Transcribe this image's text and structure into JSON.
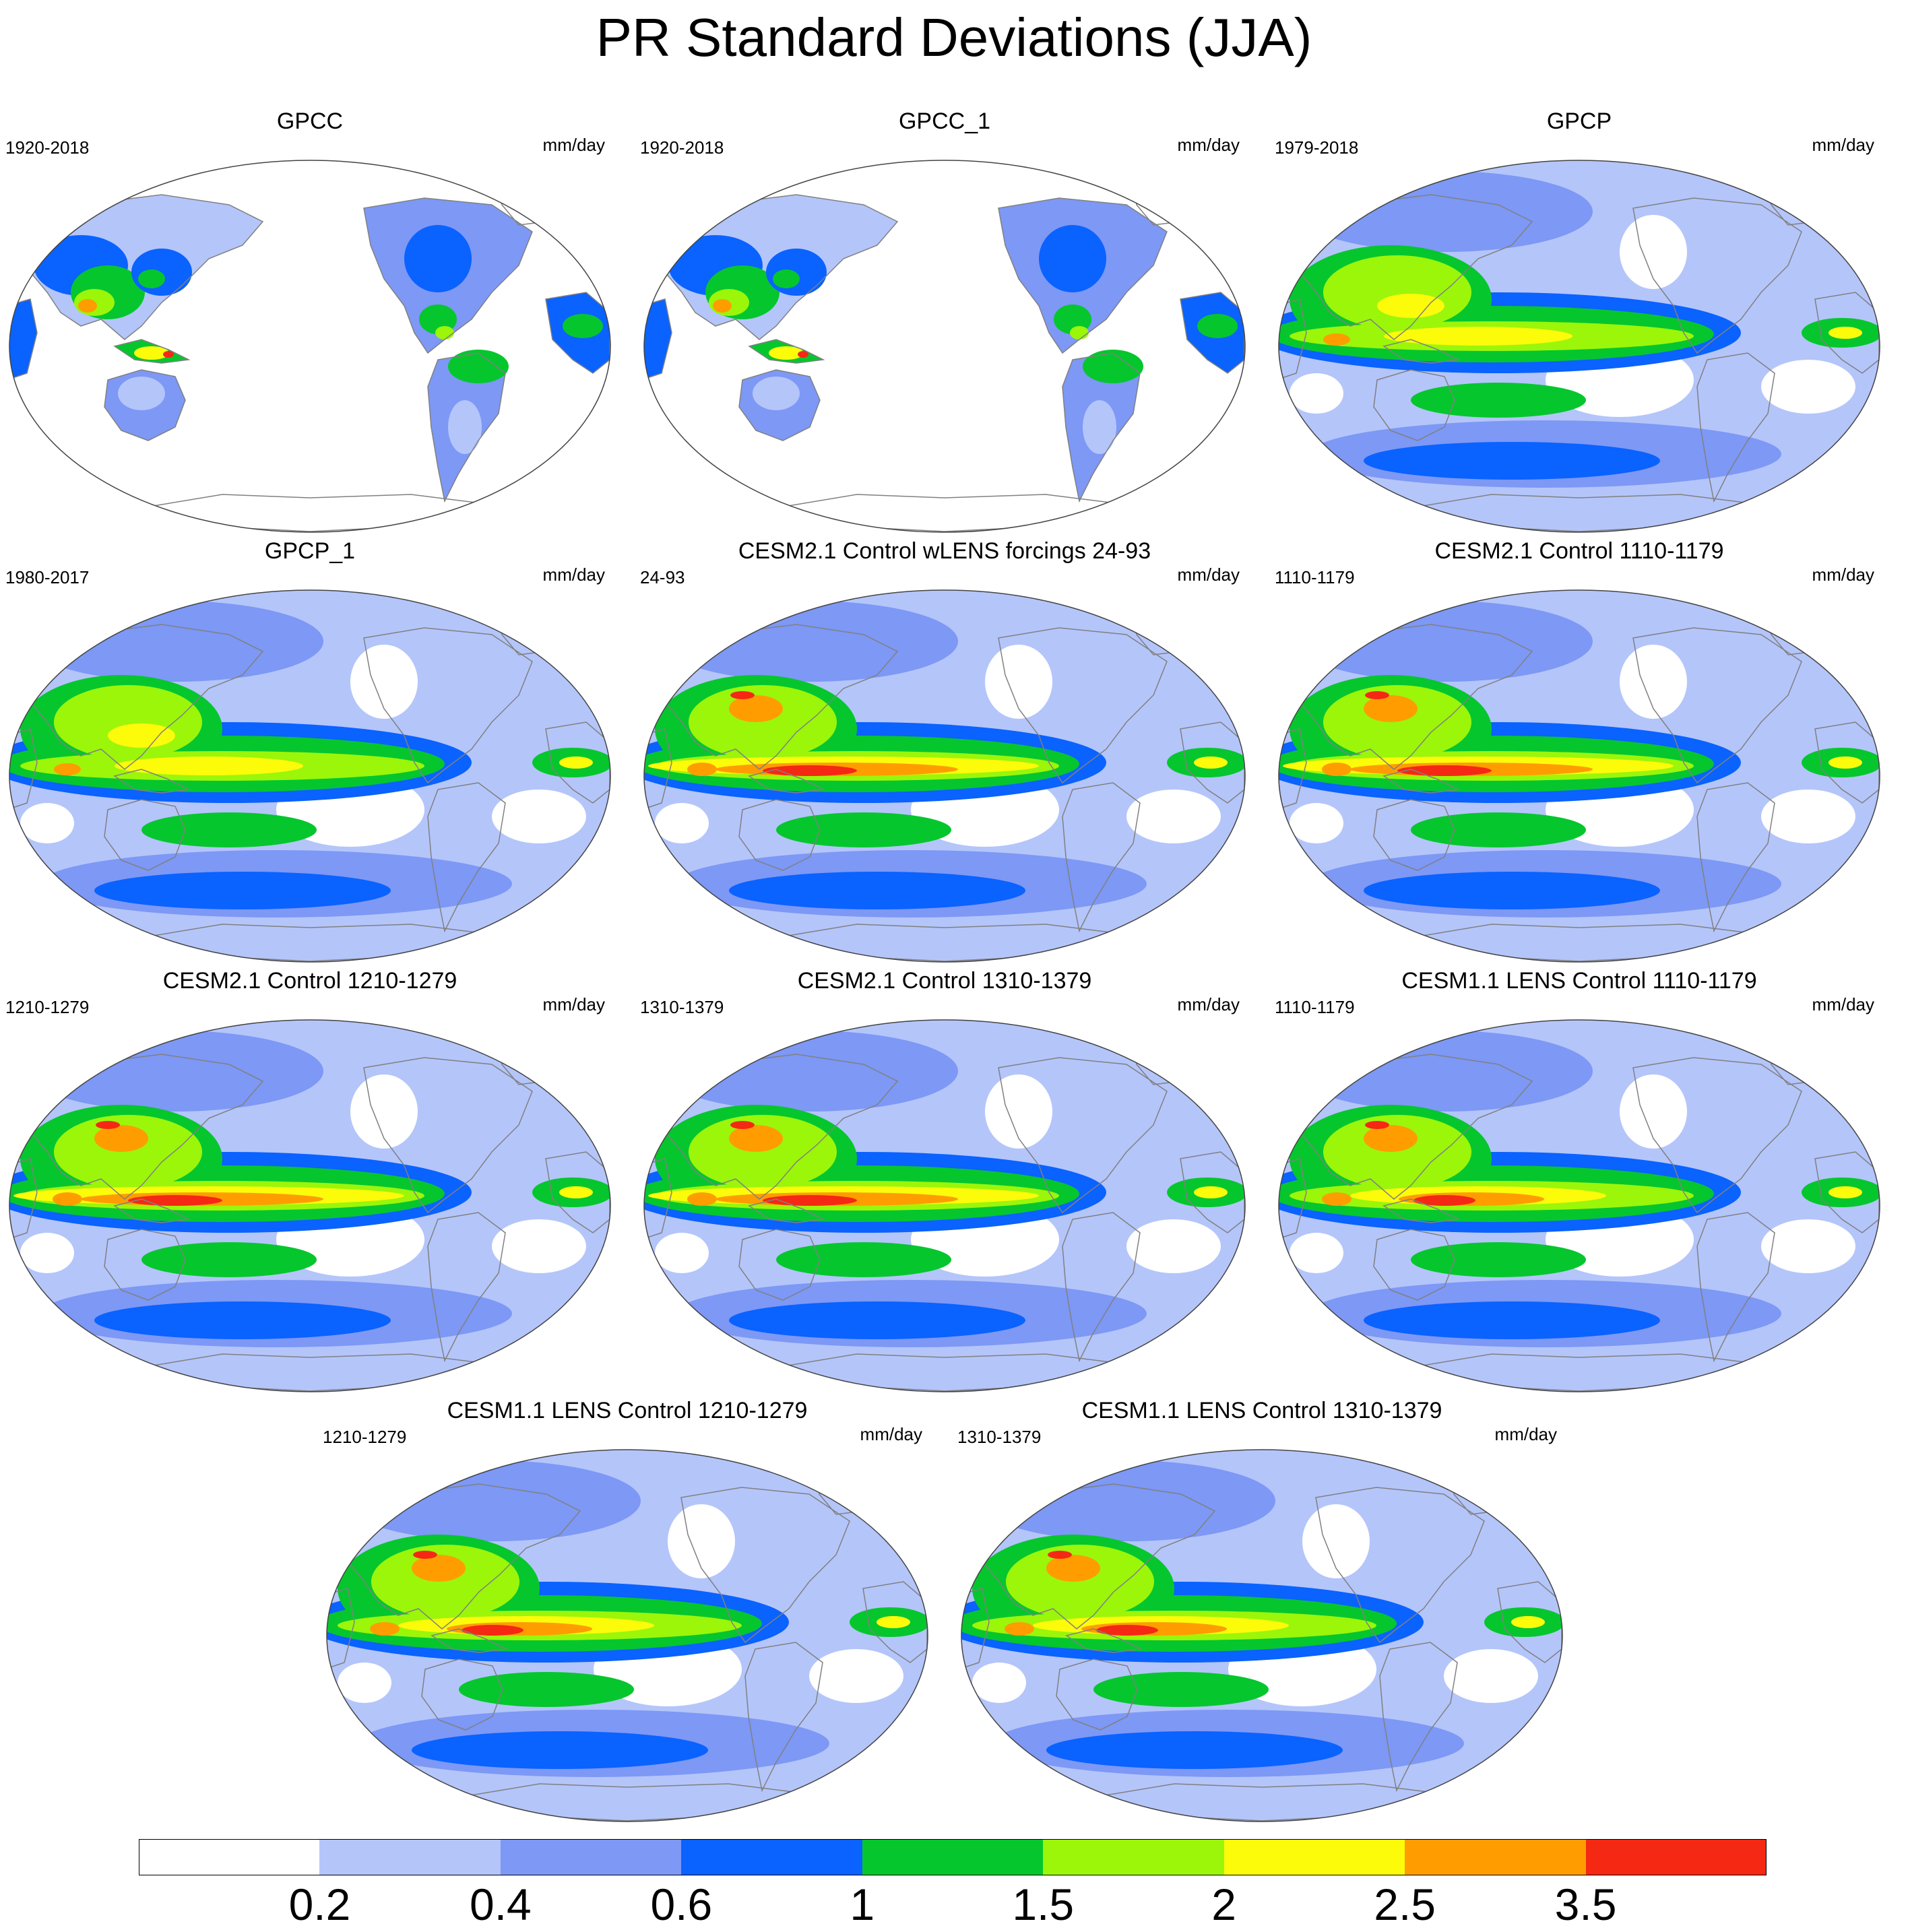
{
  "title": "PR Standard Deviations (JJA)",
  "panels": [
    {
      "title": "GPCC",
      "period": "1920-2018",
      "units": "mm/day",
      "kind": "land"
    },
    {
      "title": "GPCC_1",
      "period": "1920-2018",
      "units": "mm/day",
      "kind": "land"
    },
    {
      "title": "GPCP",
      "period": "1979-2018",
      "units": "mm/day",
      "kind": "obs"
    },
    {
      "title": "GPCP_1",
      "period": "1980-2017",
      "units": "mm/day",
      "kind": "obs"
    },
    {
      "title": "CESM2.1 Control wLENS forcings 24-93",
      "period": "24-93",
      "units": "mm/day",
      "kind": "cesm2"
    },
    {
      "title": "CESM2.1 Control 1110-1179",
      "period": "1110-1179",
      "units": "mm/day",
      "kind": "cesm2"
    },
    {
      "title": "CESM2.1 Control 1210-1279",
      "period": "1210-1279",
      "units": "mm/day",
      "kind": "cesm2"
    },
    {
      "title": "CESM2.1 Control 1310-1379",
      "period": "1310-1379",
      "units": "mm/day",
      "kind": "cesm2"
    },
    {
      "title": "CESM1.1 LENS Control 1110-1179",
      "period": "1110-1179",
      "units": "mm/day",
      "kind": "cesm1"
    },
    {
      "title": "CESM1.1 LENS Control 1210-1279",
      "period": "1210-1279",
      "units": "mm/day",
      "kind": "cesm1"
    },
    {
      "title": "CESM1.1 LENS Control 1310-1379",
      "period": "1310-1379",
      "units": "mm/day",
      "kind": "cesm1"
    }
  ],
  "colorbar": {
    "labels": [
      "0.2",
      "0.4",
      "0.6",
      "1",
      "1.5",
      "2",
      "2.5",
      "3.5"
    ],
    "colors": [
      "#ffffff",
      "#b4c5fa",
      "#7d98f5",
      "#0a62ff",
      "#06c62e",
      "#9bf60a",
      "#fbfb0a",
      "#ff9d00",
      "#f52814"
    ]
  },
  "colors": {
    "coast": "#808080",
    "map_border": "#444444"
  }
}
